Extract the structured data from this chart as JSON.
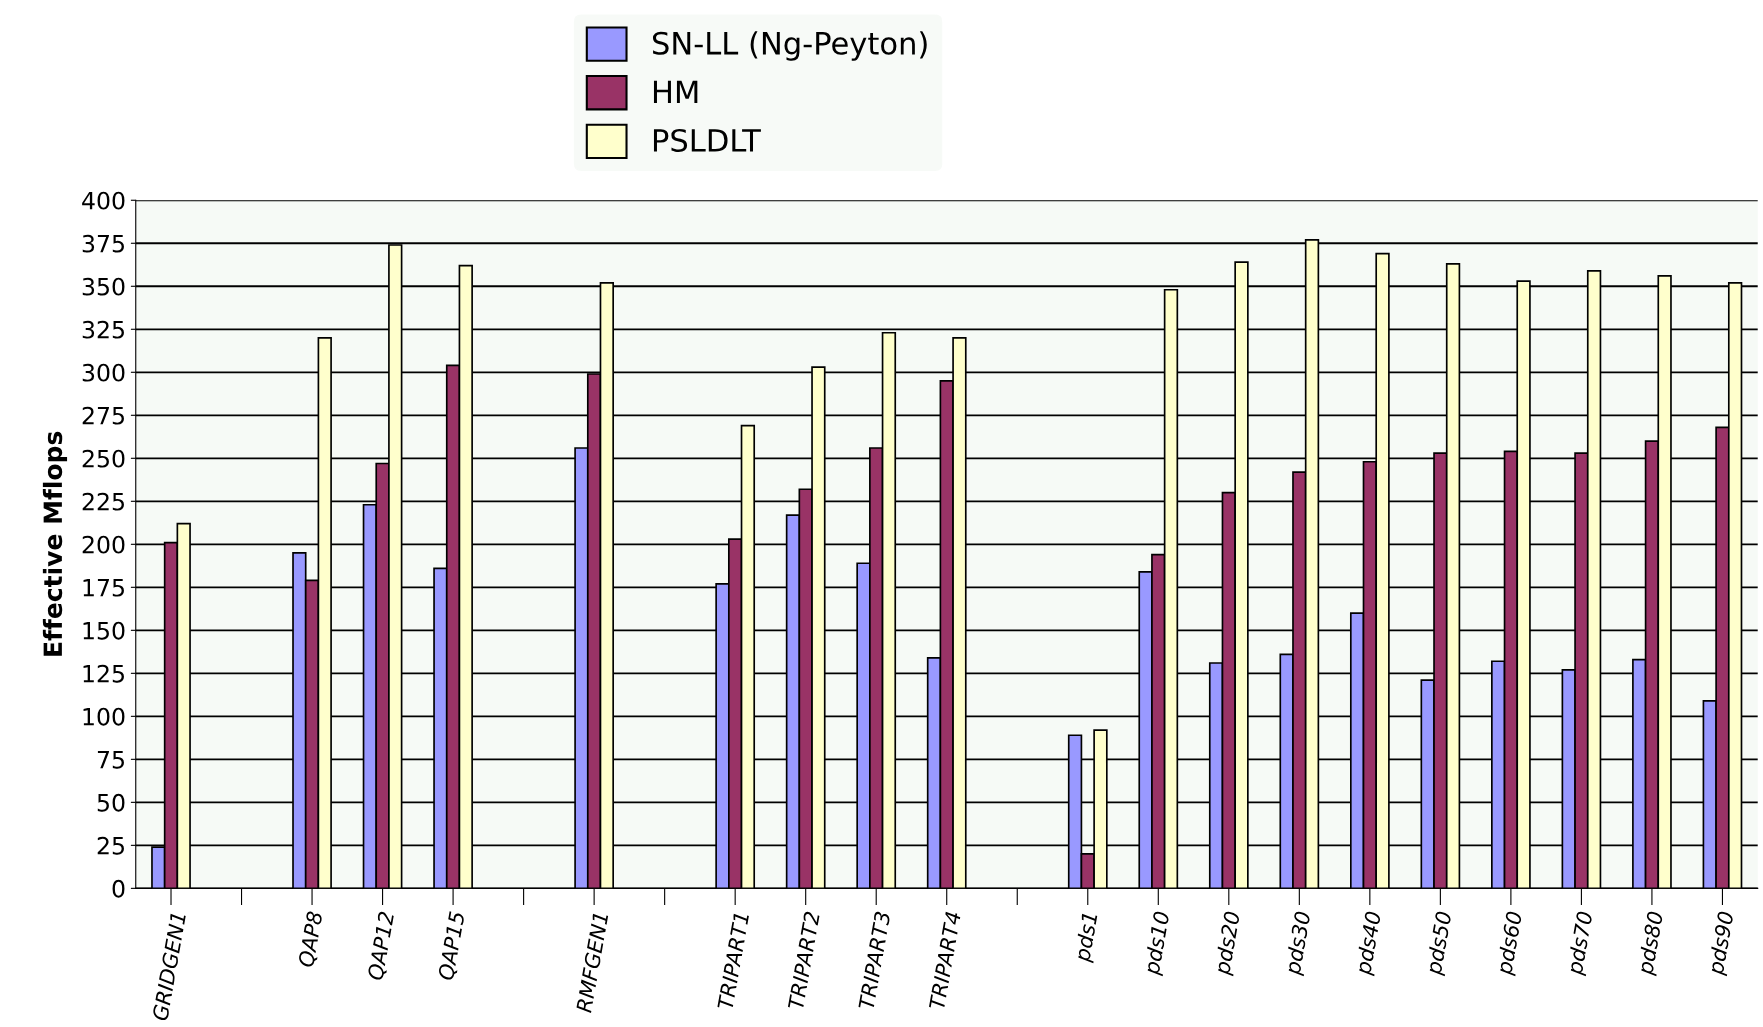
{
  "chart_data": {
    "type": "bar",
    "ylabel": "Effective Mflops",
    "categories": [
      "GRIDGEN1",
      null,
      "QAP8",
      "QAP12",
      "QAP15",
      null,
      "RMFGEN1",
      null,
      "TRIPART1",
      "TRIPART2",
      "TRIPART3",
      "TRIPART4",
      null,
      "pds1",
      "pds10",
      "pds20",
      "pds30",
      "pds40",
      "pds50",
      "pds60",
      "pds70",
      "pds80",
      "pds90"
    ],
    "series": [
      {
        "name": "SN-LL (Ng-Peyton)",
        "color": "#9999ff",
        "values": [
          24,
          null,
          195,
          223,
          186,
          null,
          256,
          null,
          177,
          217,
          189,
          134,
          null,
          89,
          184,
          131,
          136,
          160,
          121,
          132,
          127,
          133,
          109
        ]
      },
      {
        "name": "HM",
        "color": "#993366",
        "values": [
          201,
          null,
          179,
          247,
          304,
          null,
          299,
          null,
          203,
          232,
          256,
          295,
          null,
          20,
          194,
          230,
          242,
          248,
          253,
          254,
          253,
          260,
          268
        ]
      },
      {
        "name": "PSLDLT",
        "color": "#ffffcc",
        "values": [
          212,
          null,
          320,
          374,
          362,
          null,
          352,
          null,
          269,
          303,
          323,
          320,
          null,
          92,
          348,
          364,
          377,
          369,
          363,
          353,
          359,
          356,
          352
        ]
      }
    ],
    "ylim": [
      0,
      400
    ],
    "yticks": [
      0,
      25,
      50,
      75,
      100,
      125,
      150,
      175,
      200,
      225,
      250,
      275,
      300,
      325,
      350,
      375,
      400
    ],
    "grid": "y",
    "legend": "top"
  }
}
